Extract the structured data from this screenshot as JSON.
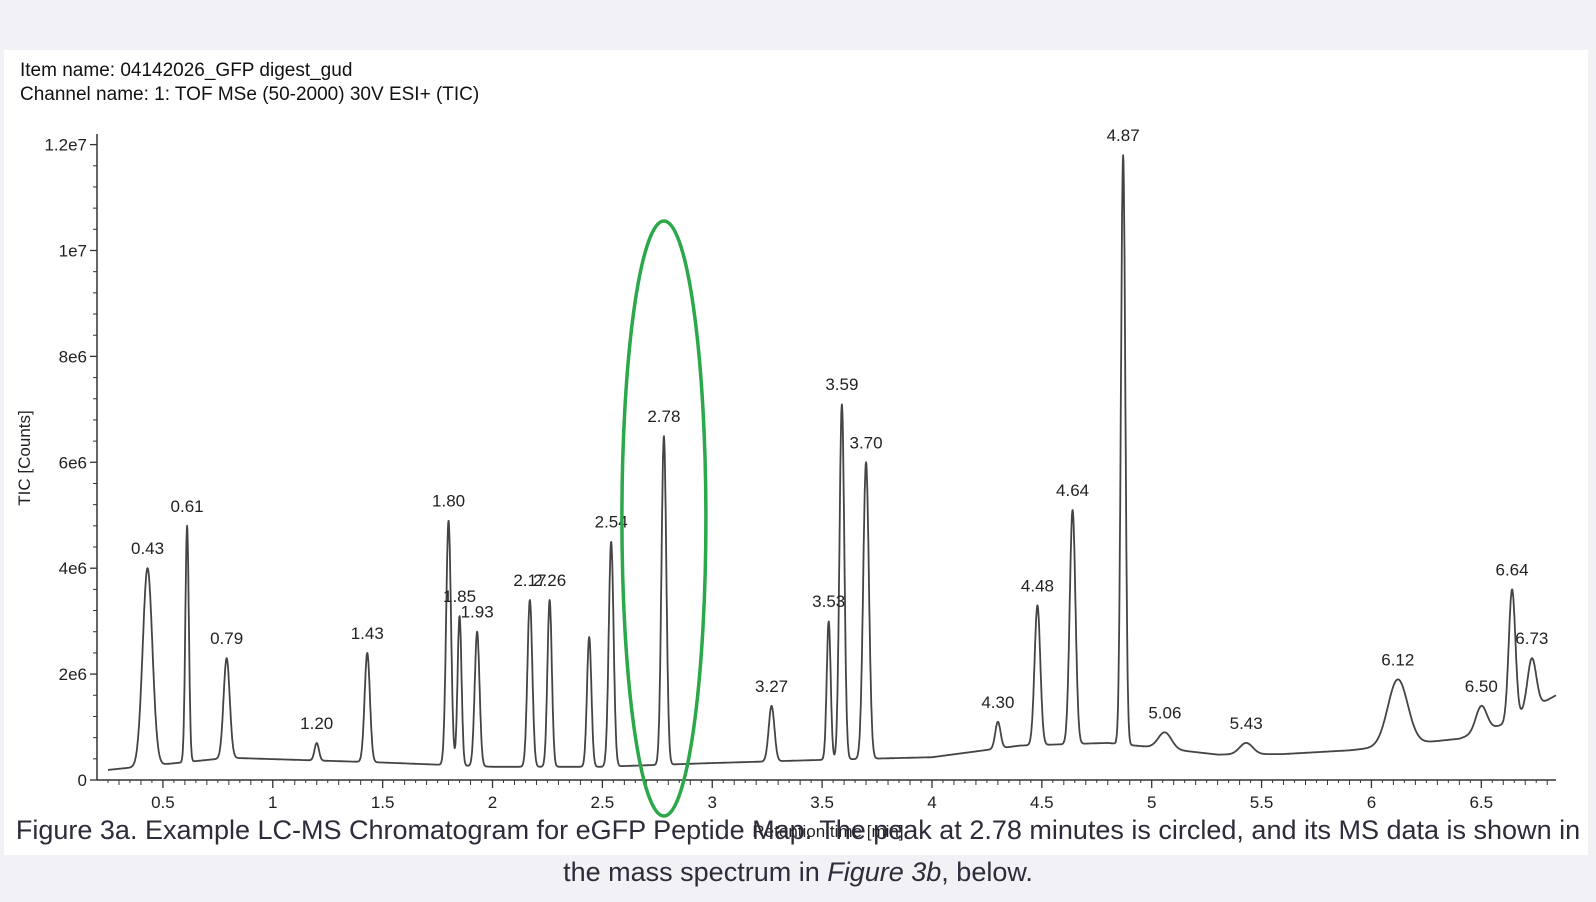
{
  "header": {
    "item_name": "Item name: 04142026_GFP digest_gud",
    "channel_name": "Channel name: 1: TOF MSe (50-2000) 30V ESI+ (TIC)"
  },
  "caption": {
    "text_before": "Figure 3a. Example LC-MS Chromatogram for eGFP Peptide Map. The peak at 2.78 minutes is circled, and its MS data is shown in the mass spectrum in ",
    "italic": "Figure 3b",
    "text_after": ", below."
  },
  "colors": {
    "trace": "#444444",
    "highlight": "#2aa84a",
    "axis": "#333333"
  },
  "chart_data": {
    "type": "line",
    "title": "",
    "xlabel": "Retention time [min]",
    "ylabel": "TIC [Counts]",
    "xlim": [
      0.2,
      6.84
    ],
    "ylim": [
      0,
      12200000
    ],
    "x_ticks": [
      {
        "v": 0.5,
        "label": "0.5"
      },
      {
        "v": 1,
        "label": "1"
      },
      {
        "v": 1.5,
        "label": "1.5"
      },
      {
        "v": 2,
        "label": "2"
      },
      {
        "v": 2.5,
        "label": "2.5"
      },
      {
        "v": 3,
        "label": "3"
      },
      {
        "v": 3.5,
        "label": "3.5"
      },
      {
        "v": 4,
        "label": "4"
      },
      {
        "v": 4.5,
        "label": "4.5"
      },
      {
        "v": 5,
        "label": "5"
      },
      {
        "v": 5.5,
        "label": "5.5"
      },
      {
        "v": 6,
        "label": "6"
      },
      {
        "v": 6.5,
        "label": "6.5"
      }
    ],
    "y_ticks": [
      {
        "v": 0,
        "label": "0"
      },
      {
        "v": 2000000,
        "label": "2e6"
      },
      {
        "v": 4000000,
        "label": "4e6"
      },
      {
        "v": 6000000,
        "label": "6e6"
      },
      {
        "v": 8000000,
        "label": "8e6"
      },
      {
        "v": 10000000,
        "label": "1e7"
      },
      {
        "v": 12000000,
        "label": "1.2e7"
      }
    ],
    "baseline": [
      [
        0.2,
        170000
      ],
      [
        0.8,
        420000
      ],
      [
        1.5,
        330000
      ],
      [
        2.0,
        250000
      ],
      [
        2.5,
        250000
      ],
      [
        3.0,
        320000
      ],
      [
        3.5,
        380000
      ],
      [
        4.0,
        430000
      ],
      [
        4.4,
        650000
      ],
      [
        4.8,
        700000
      ],
      [
        5.0,
        620000
      ],
      [
        5.3,
        480000
      ],
      [
        5.6,
        490000
      ],
      [
        5.9,
        560000
      ],
      [
        6.4,
        780000
      ],
      [
        6.6,
        1050000
      ],
      [
        6.84,
        1600000
      ]
    ],
    "peaks": [
      {
        "rt": 0.43,
        "height": 4000000,
        "label": "0.43",
        "width": 0.022
      },
      {
        "rt": 0.61,
        "height": 4800000,
        "label": "0.61",
        "width": 0.008
      },
      {
        "rt": 0.79,
        "height": 2300000,
        "label": "0.79",
        "width": 0.014
      },
      {
        "rt": 1.2,
        "height": 700000,
        "label": "1.20",
        "width": 0.01
      },
      {
        "rt": 1.43,
        "height": 2400000,
        "label": "1.43",
        "width": 0.012
      },
      {
        "rt": 1.8,
        "height": 4900000,
        "label": "1.80",
        "width": 0.011
      },
      {
        "rt": 1.85,
        "height": 3100000,
        "label": "1.85",
        "width": 0.009
      },
      {
        "rt": 1.93,
        "height": 2800000,
        "label": "1.93",
        "width": 0.011
      },
      {
        "rt": 2.17,
        "height": 3400000,
        "label": "2.17",
        "width": 0.011
      },
      {
        "rt": 2.26,
        "height": 3400000,
        "label": "2.26",
        "width": 0.01
      },
      {
        "rt": 2.44,
        "height": 2700000,
        "label": "",
        "width": 0.01
      },
      {
        "rt": 2.54,
        "height": 4500000,
        "label": "2.54",
        "width": 0.011
      },
      {
        "rt": 2.78,
        "height": 6500000,
        "label": "2.78",
        "width": 0.011
      },
      {
        "rt": 3.27,
        "height": 1400000,
        "label": "3.27",
        "width": 0.013
      },
      {
        "rt": 3.53,
        "height": 3000000,
        "label": "3.53",
        "width": 0.009
      },
      {
        "rt": 3.59,
        "height": 7100000,
        "label": "3.59",
        "width": 0.011
      },
      {
        "rt": 3.7,
        "height": 6000000,
        "label": "3.70",
        "width": 0.013
      },
      {
        "rt": 4.3,
        "height": 1100000,
        "label": "4.30",
        "width": 0.012
      },
      {
        "rt": 4.48,
        "height": 3300000,
        "label": "4.48",
        "width": 0.013
      },
      {
        "rt": 4.64,
        "height": 5100000,
        "label": "4.64",
        "width": 0.013
      },
      {
        "rt": 4.87,
        "height": 11800000,
        "label": "4.87",
        "width": 0.01
      },
      {
        "rt": 5.06,
        "height": 900000,
        "label": "5.06",
        "width": 0.03
      },
      {
        "rt": 5.43,
        "height": 700000,
        "label": "5.43",
        "width": 0.03
      },
      {
        "rt": 6.12,
        "height": 1900000,
        "label": "6.12",
        "width": 0.045
      },
      {
        "rt": 6.5,
        "height": 1400000,
        "label": "6.50",
        "width": 0.025
      },
      {
        "rt": 6.64,
        "height": 3600000,
        "label": "6.64",
        "width": 0.015
      },
      {
        "rt": 6.73,
        "height": 2300000,
        "label": "6.73",
        "width": 0.02
      }
    ],
    "highlighted_peak": "2.78",
    "grid": false,
    "legend": "none"
  }
}
